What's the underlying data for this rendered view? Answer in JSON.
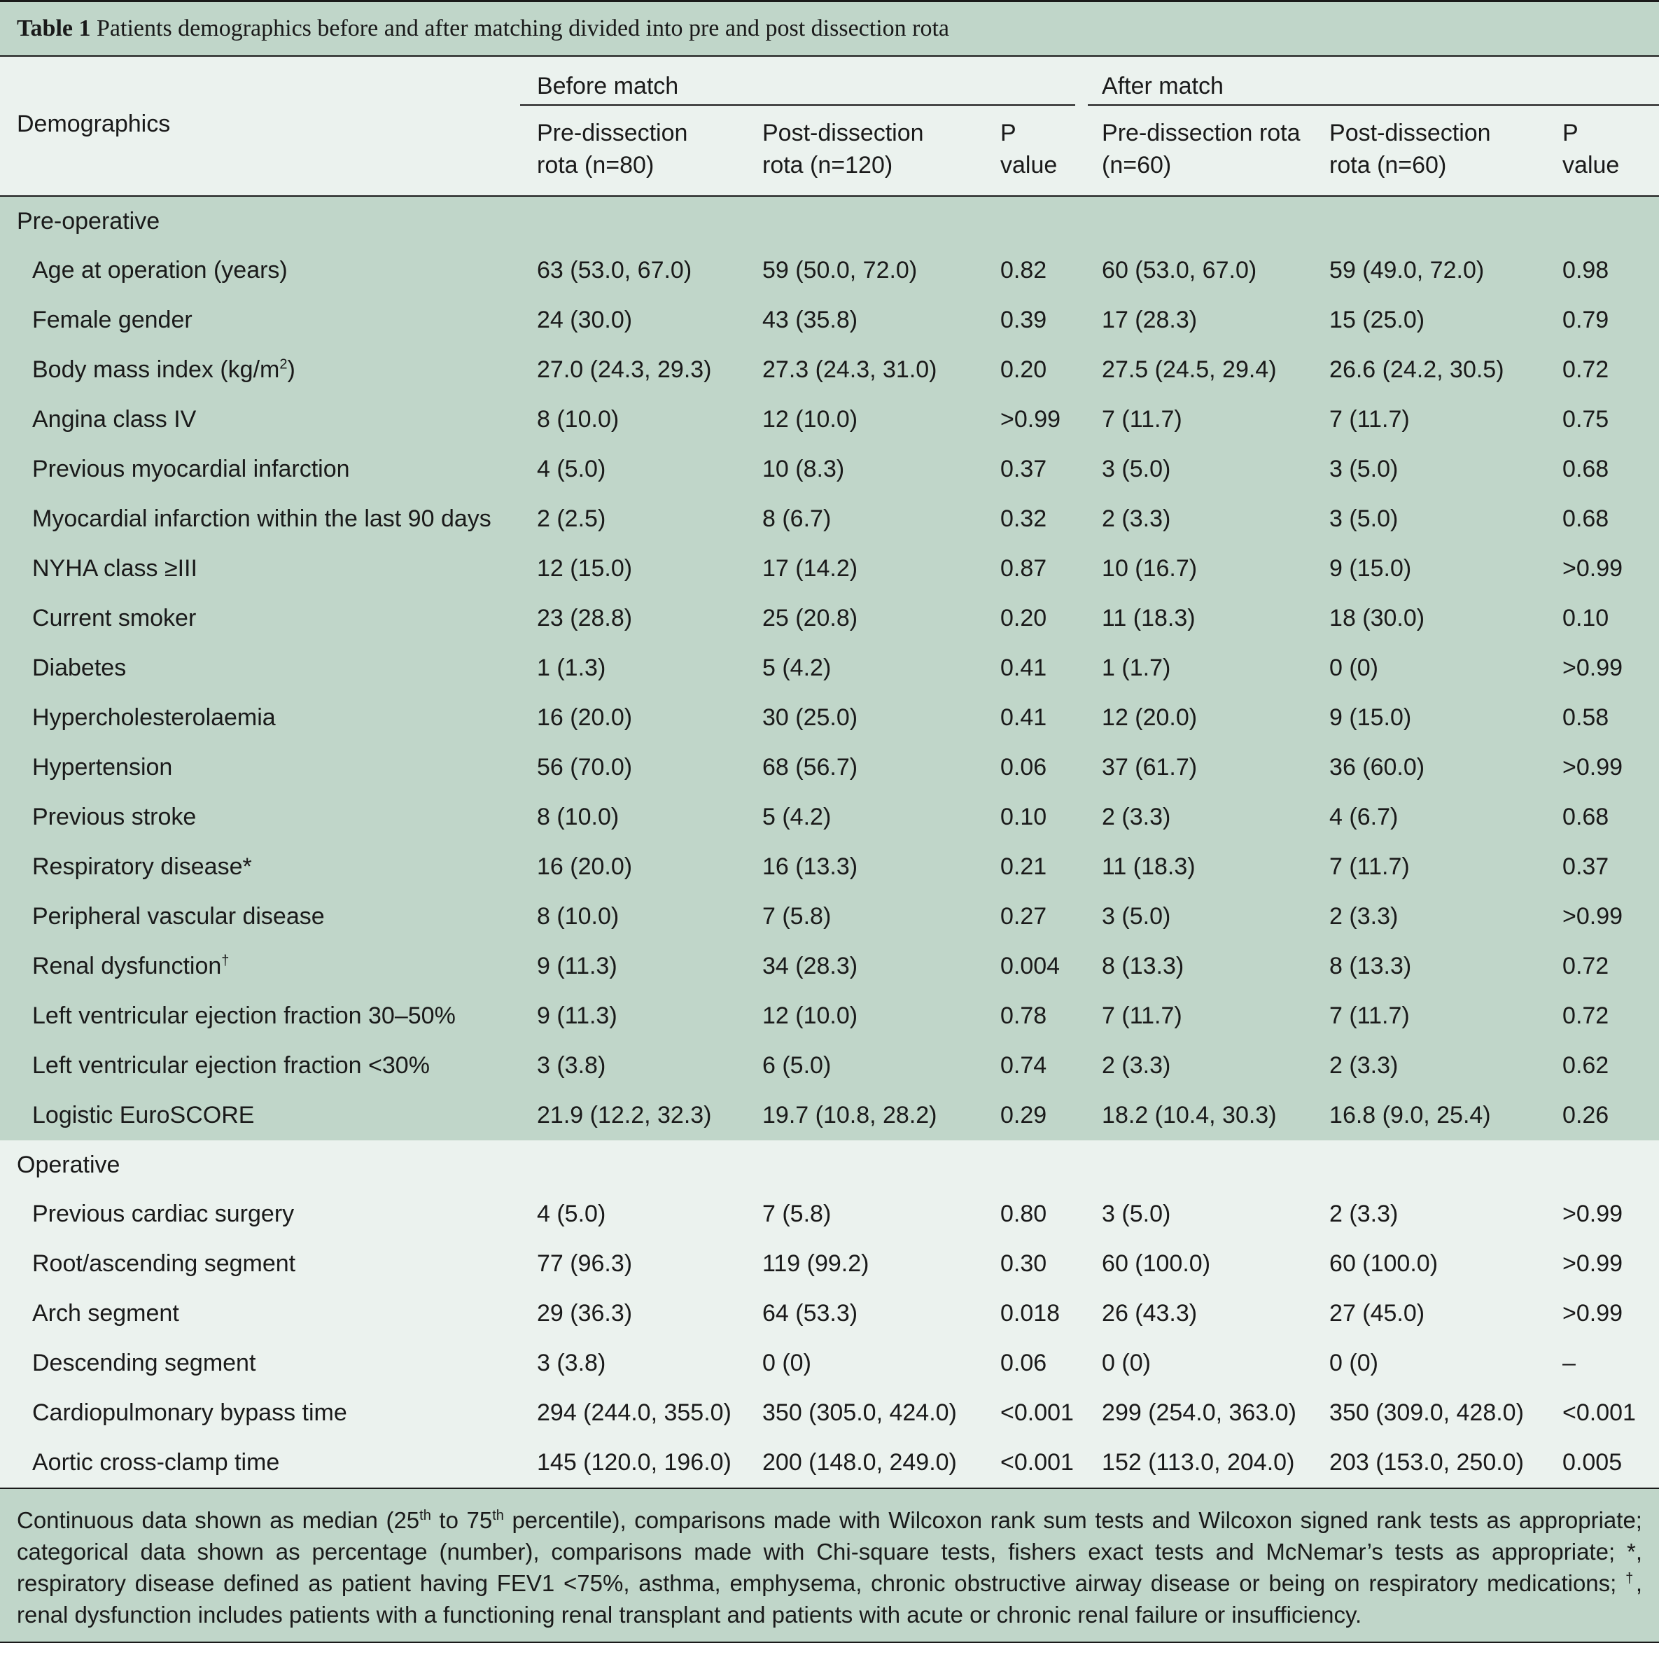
{
  "caption": {
    "label": "Table 1",
    "title": "Patients demographics before and after matching divided into pre and post dissection rota"
  },
  "header": {
    "demographics": "Demographics",
    "before_match": "Before match",
    "after_match": "After match",
    "cols": [
      {
        "line1": "Pre-dissection",
        "line2": "rota (n=80)"
      },
      {
        "line1": "Post-dissection",
        "line2": "rota (n=120)"
      },
      {
        "line1": "P",
        "line2": "value"
      },
      {
        "line1": "Pre-dissection rota",
        "line2": "(n=60)"
      },
      {
        "line1": "Post-dissection",
        "line2": "rota (n=60)"
      },
      {
        "line1": "P",
        "line2": "value"
      }
    ]
  },
  "sections": [
    {
      "title": "Pre-operative",
      "rows": [
        {
          "label": "Age at operation (years)",
          "sup": "",
          "values": [
            "63 (53.0, 67.0)",
            "59 (50.0, 72.0)",
            "0.82",
            "60 (53.0, 67.0)",
            "59 (49.0, 72.0)",
            "0.98"
          ]
        },
        {
          "label": "Female gender",
          "sup": "",
          "values": [
            "24 (30.0)",
            "43 (35.8)",
            "0.39",
            "17 (28.3)",
            "15 (25.0)",
            "0.79"
          ]
        },
        {
          "label": "Body mass index (kg/m",
          "sup": "2",
          "suffix": ")",
          "values": [
            "27.0 (24.3, 29.3)",
            "27.3 (24.3, 31.0)",
            "0.20",
            "27.5 (24.5, 29.4)",
            "26.6 (24.2, 30.5)",
            "0.72"
          ]
        },
        {
          "label": "Angina class IV",
          "sup": "",
          "values": [
            "8 (10.0)",
            "12 (10.0)",
            ">0.99",
            "7 (11.7)",
            "7 (11.7)",
            "0.75"
          ]
        },
        {
          "label": "Previous myocardial infarction",
          "sup": "",
          "values": [
            "4 (5.0)",
            "10 (8.3)",
            "0.37",
            "3 (5.0)",
            "3 (5.0)",
            "0.68"
          ]
        },
        {
          "label": "Myocardial infarction within the last 90 days",
          "sup": "",
          "values": [
            "2 (2.5)",
            "8 (6.7)",
            "0.32",
            "2 (3.3)",
            "3 (5.0)",
            "0.68"
          ]
        },
        {
          "label": "NYHA class ≥III",
          "sup": "",
          "values": [
            "12 (15.0)",
            "17 (14.2)",
            "0.87",
            "10 (16.7)",
            "9 (15.0)",
            ">0.99"
          ]
        },
        {
          "label": "Current smoker",
          "sup": "",
          "values": [
            "23 (28.8)",
            "25 (20.8)",
            "0.20",
            "11 (18.3)",
            "18 (30.0)",
            "0.10"
          ]
        },
        {
          "label": "Diabetes",
          "sup": "",
          "values": [
            "1 (1.3)",
            "5 (4.2)",
            "0.41",
            "1 (1.7)",
            "0 (0)",
            ">0.99"
          ]
        },
        {
          "label": "Hypercholesterolaemia",
          "sup": "",
          "values": [
            "16 (20.0)",
            "30 (25.0)",
            "0.41",
            "12 (20.0)",
            "9 (15.0)",
            "0.58"
          ]
        },
        {
          "label": "Hypertension",
          "sup": "",
          "values": [
            "56 (70.0)",
            "68 (56.7)",
            "0.06",
            "37 (61.7)",
            "36 (60.0)",
            ">0.99"
          ]
        },
        {
          "label": "Previous stroke",
          "sup": "",
          "values": [
            "8 (10.0)",
            "5 (4.2)",
            "0.10",
            "2 (3.3)",
            "4 (6.7)",
            "0.68"
          ]
        },
        {
          "label": "Respiratory disease*",
          "sup": "",
          "values": [
            "16 (20.0)",
            "16 (13.3)",
            "0.21",
            "11 (18.3)",
            "7 (11.7)",
            "0.37"
          ]
        },
        {
          "label": "Peripheral vascular disease",
          "sup": "",
          "values": [
            "8 (10.0)",
            "7 (5.8)",
            "0.27",
            "3 (5.0)",
            "2 (3.3)",
            ">0.99"
          ]
        },
        {
          "label": "Renal dysfunction",
          "sup": "†",
          "values": [
            "9 (11.3)",
            "34 (28.3)",
            "0.004",
            "8 (13.3)",
            "8 (13.3)",
            "0.72"
          ]
        },
        {
          "label": "Left ventricular ejection fraction 30–50%",
          "sup": "",
          "values": [
            "9 (11.3)",
            "12 (10.0)",
            "0.78",
            "7 (11.7)",
            "7 (11.7)",
            "0.72"
          ]
        },
        {
          "label": "Left ventricular ejection fraction <30%",
          "sup": "",
          "values": [
            "3 (3.8)",
            "6 (5.0)",
            "0.74",
            "2 (3.3)",
            "2 (3.3)",
            "0.62"
          ]
        },
        {
          "label": "Logistic EuroSCORE",
          "sup": "",
          "values": [
            "21.9 (12.2, 32.3)",
            "19.7 (10.8, 28.2)",
            "0.29",
            "18.2 (10.4, 30.3)",
            "16.8 (9.0, 25.4)",
            "0.26"
          ]
        }
      ]
    },
    {
      "title": "Operative",
      "rows": [
        {
          "label": "Previous cardiac surgery",
          "sup": "",
          "values": [
            "4 (5.0)",
            "7 (5.8)",
            "0.80",
            "3 (5.0)",
            "2 (3.3)",
            ">0.99"
          ]
        },
        {
          "label": "Root/ascending segment",
          "sup": "",
          "values": [
            "77 (96.3)",
            "119 (99.2)",
            "0.30",
            "60 (100.0)",
            "60 (100.0)",
            ">0.99"
          ]
        },
        {
          "label": "Arch segment",
          "sup": "",
          "values": [
            "29 (36.3)",
            "64 (53.3)",
            "0.018",
            "26 (43.3)",
            "27 (45.0)",
            ">0.99"
          ]
        },
        {
          "label": "Descending segment",
          "sup": "",
          "values": [
            "3 (3.8)",
            "0 (0)",
            "0.06",
            "0 (0)",
            "0 (0)",
            "–"
          ]
        },
        {
          "label": "Cardiopulmonary bypass time",
          "sup": "",
          "values": [
            "294 (244.0, 355.0)",
            "350 (305.0, 424.0)",
            "<0.001",
            "299 (254.0, 363.0)",
            "350 (309.0, 428.0)",
            "<0.001"
          ]
        },
        {
          "label": "Aortic cross-clamp time",
          "sup": "",
          "values": [
            "145 (120.0, 196.0)",
            "200 (148.0, 249.0)",
            "<0.001",
            "152 (113.0, 204.0)",
            "203 (153.0, 250.0)",
            "0.005"
          ]
        }
      ]
    }
  ],
  "footnote": {
    "p1": "Continuous data shown as median (25",
    "sup1": "th",
    "p2": " to 75",
    "sup2": "th",
    "p3": " percentile), comparisons made with Wilcoxon rank sum tests and Wilcoxon signed rank tests as appropriate; categorical data shown as percentage (number), comparisons made with Chi-square tests, fishers exact tests and McNemar’s tests as appropriate; *, respiratory disease defined as patient having FEV1 <75%, asthma, emphysema, chronic obstructive airway disease or being on respiratory medications; ",
    "sup3": "†",
    "p4": ", renal dysfunction includes patients with a functioning renal transplant and patients with acute or chronic renal failure or insufficiency."
  },
  "colors": {
    "dark_band": "#c0d6c9",
    "light_band": "#ebf2ee",
    "rule": "#1a1a1a"
  }
}
